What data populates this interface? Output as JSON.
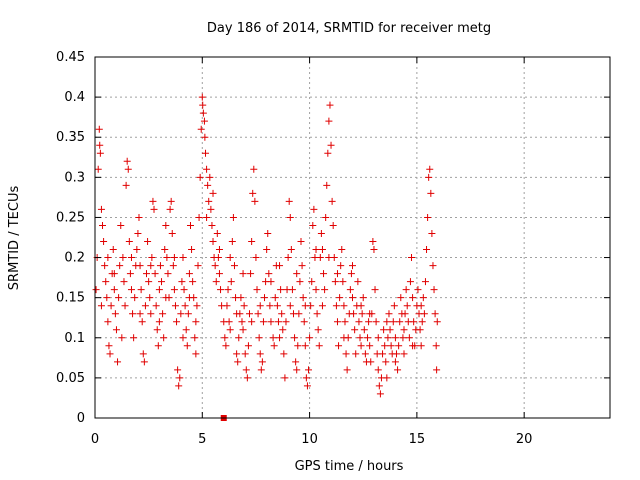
{
  "chart_data": {
    "type": "scatter",
    "title": "Day 186 of 2014, SRMTID for receiver metg",
    "xlabel": "GPS time / hours",
    "ylabel": "SRMTID / TECUs",
    "xlim": [
      0,
      24
    ],
    "ylim": [
      0,
      0.45
    ],
    "xticks": [
      0,
      5,
      10,
      15,
      20
    ],
    "yticks": [
      0,
      0.05,
      0.1,
      0.15,
      0.2,
      0.25,
      0.3,
      0.35,
      0.4,
      0.45
    ],
    "grid": true,
    "legend": "none",
    "series_color": "#e00000",
    "marker": "plus",
    "points": [
      [
        0.05,
        0.16
      ],
      [
        0.1,
        0.2
      ],
      [
        0.15,
        0.31
      ],
      [
        0.2,
        0.36
      ],
      [
        0.22,
        0.34
      ],
      [
        0.25,
        0.33
      ],
      [
        0.3,
        0.26
      ],
      [
        0.35,
        0.24
      ],
      [
        0.4,
        0.22
      ],
      [
        0.45,
        0.19
      ],
      [
        0.5,
        0.17
      ],
      [
        0.55,
        0.15
      ],
      [
        0.6,
        0.12
      ],
      [
        0.65,
        0.09
      ],
      [
        0.7,
        0.08
      ],
      [
        0.75,
        0.14
      ],
      [
        0.8,
        0.18
      ],
      [
        0.85,
        0.21
      ],
      [
        0.9,
        0.16
      ],
      [
        0.95,
        0.13
      ],
      [
        1.0,
        0.11
      ],
      [
        1.05,
        0.07
      ],
      [
        1.1,
        0.15
      ],
      [
        1.15,
        0.19
      ],
      [
        1.2,
        0.24
      ],
      [
        1.3,
        0.2
      ],
      [
        1.35,
        0.17
      ],
      [
        1.4,
        0.14
      ],
      [
        1.45,
        0.29
      ],
      [
        1.5,
        0.32
      ],
      [
        1.55,
        0.31
      ],
      [
        1.6,
        0.22
      ],
      [
        1.65,
        0.18
      ],
      [
        1.7,
        0.16
      ],
      [
        1.75,
        0.13
      ],
      [
        1.8,
        0.1
      ],
      [
        1.85,
        0.15
      ],
      [
        1.9,
        0.19
      ],
      [
        1.95,
        0.21
      ],
      [
        2.0,
        0.23
      ],
      [
        2.05,
        0.25
      ],
      [
        2.1,
        0.19
      ],
      [
        2.15,
        0.16
      ],
      [
        2.2,
        0.12
      ],
      [
        2.25,
        0.08
      ],
      [
        2.3,
        0.07
      ],
      [
        2.35,
        0.14
      ],
      [
        2.4,
        0.18
      ],
      [
        2.45,
        0.22
      ],
      [
        2.5,
        0.17
      ],
      [
        2.55,
        0.15
      ],
      [
        2.6,
        0.13
      ],
      [
        2.65,
        0.2
      ],
      [
        2.7,
        0.27
      ],
      [
        2.75,
        0.26
      ],
      [
        2.8,
        0.18
      ],
      [
        2.85,
        0.14
      ],
      [
        2.9,
        0.11
      ],
      [
        2.95,
        0.09
      ],
      [
        3.0,
        0.16
      ],
      [
        3.05,
        0.19
      ],
      [
        3.1,
        0.17
      ],
      [
        3.15,
        0.13
      ],
      [
        3.2,
        0.1
      ],
      [
        3.25,
        0.21
      ],
      [
        3.3,
        0.24
      ],
      [
        3.35,
        0.2
      ],
      [
        3.4,
        0.18
      ],
      [
        3.45,
        0.15
      ],
      [
        3.5,
        0.26
      ],
      [
        3.55,
        0.27
      ],
      [
        3.6,
        0.23
      ],
      [
        3.65,
        0.19
      ],
      [
        3.7,
        0.16
      ],
      [
        3.75,
        0.14
      ],
      [
        3.8,
        0.12
      ],
      [
        3.85,
        0.06
      ],
      [
        3.9,
        0.04
      ],
      [
        3.95,
        0.05
      ],
      [
        4.0,
        0.13
      ],
      [
        4.05,
        0.17
      ],
      [
        4.1,
        0.2
      ],
      [
        4.15,
        0.16
      ],
      [
        4.2,
        0.14
      ],
      [
        4.25,
        0.11
      ],
      [
        4.3,
        0.09
      ],
      [
        4.35,
        0.13
      ],
      [
        4.4,
        0.18
      ],
      [
        4.45,
        0.24
      ],
      [
        4.5,
        0.21
      ],
      [
        4.55,
        0.17
      ],
      [
        4.6,
        0.15
      ],
      [
        4.65,
        0.1
      ],
      [
        4.7,
        0.08
      ],
      [
        4.75,
        0.14
      ],
      [
        4.8,
        0.19
      ],
      [
        4.85,
        0.25
      ],
      [
        4.9,
        0.3
      ],
      [
        4.95,
        0.36
      ],
      [
        5.0,
        0.4
      ],
      [
        5.02,
        0.39
      ],
      [
        5.05,
        0.38
      ],
      [
        5.1,
        0.37
      ],
      [
        5.12,
        0.35
      ],
      [
        5.15,
        0.33
      ],
      [
        5.2,
        0.31
      ],
      [
        5.25,
        0.29
      ],
      [
        5.3,
        0.27
      ],
      [
        5.35,
        0.3
      ],
      [
        5.4,
        0.26
      ],
      [
        5.45,
        0.24
      ],
      [
        5.5,
        0.22
      ],
      [
        5.55,
        0.2
      ],
      [
        5.6,
        0.19
      ],
      [
        5.65,
        0.17
      ],
      [
        5.7,
        0.23
      ],
      [
        5.75,
        0.2
      ],
      [
        5.8,
        0.18
      ],
      [
        5.85,
        0.16
      ],
      [
        5.9,
        0.14
      ],
      [
        6.0,
        0.12
      ],
      [
        6.05,
        0.1
      ],
      [
        6.1,
        0.09
      ],
      [
        6.15,
        0.14
      ],
      [
        6.2,
        0.16
      ],
      [
        6.25,
        0.12
      ],
      [
        6.3,
        0.11
      ],
      [
        6.35,
        0.17
      ],
      [
        6.4,
        0.22
      ],
      [
        6.45,
        0.25
      ],
      [
        6.5,
        0.19
      ],
      [
        6.55,
        0.15
      ],
      [
        6.6,
        0.08
      ],
      [
        6.65,
        0.07
      ],
      [
        6.7,
        0.1
      ],
      [
        6.75,
        0.13
      ],
      [
        6.8,
        0.15
      ],
      [
        6.85,
        0.12
      ],
      [
        6.9,
        0.11
      ],
      [
        6.95,
        0.14
      ],
      [
        7.0,
        0.08
      ],
      [
        7.05,
        0.06
      ],
      [
        7.1,
        0.05
      ],
      [
        7.15,
        0.09
      ],
      [
        7.2,
        0.13
      ],
      [
        7.25,
        0.18
      ],
      [
        7.3,
        0.22
      ],
      [
        7.35,
        0.28
      ],
      [
        7.4,
        0.31
      ],
      [
        7.45,
        0.27
      ],
      [
        7.5,
        0.2
      ],
      [
        7.55,
        0.16
      ],
      [
        7.6,
        0.13
      ],
      [
        7.65,
        0.1
      ],
      [
        7.7,
        0.08
      ],
      [
        7.75,
        0.06
      ],
      [
        7.8,
        0.07
      ],
      [
        7.85,
        0.12
      ],
      [
        7.9,
        0.15
      ],
      [
        7.95,
        0.17
      ],
      [
        8.0,
        0.21
      ],
      [
        8.05,
        0.23
      ],
      [
        8.1,
        0.18
      ],
      [
        8.15,
        0.14
      ],
      [
        8.2,
        0.12
      ],
      [
        8.3,
        0.1
      ],
      [
        8.35,
        0.09
      ],
      [
        8.4,
        0.15
      ],
      [
        8.45,
        0.19
      ],
      [
        8.5,
        0.14
      ],
      [
        8.55,
        0.12
      ],
      [
        8.6,
        0.1
      ],
      [
        8.65,
        0.16
      ],
      [
        8.7,
        0.13
      ],
      [
        8.75,
        0.11
      ],
      [
        8.8,
        0.08
      ],
      [
        8.85,
        0.05
      ],
      [
        8.9,
        0.12
      ],
      [
        8.95,
        0.16
      ],
      [
        9.0,
        0.2
      ],
      [
        9.05,
        0.27
      ],
      [
        9.1,
        0.25
      ],
      [
        9.15,
        0.21
      ],
      [
        9.2,
        0.16
      ],
      [
        9.25,
        0.13
      ],
      [
        9.3,
        0.1
      ],
      [
        9.35,
        0.07
      ],
      [
        9.4,
        0.06
      ],
      [
        9.45,
        0.09
      ],
      [
        9.5,
        0.13
      ],
      [
        9.55,
        0.17
      ],
      [
        9.6,
        0.22
      ],
      [
        9.65,
        0.19
      ],
      [
        9.7,
        0.15
      ],
      [
        9.75,
        0.12
      ],
      [
        9.8,
        0.09
      ],
      [
        9.85,
        0.05
      ],
      [
        9.9,
        0.04
      ],
      [
        9.95,
        0.06
      ],
      [
        10.0,
        0.1
      ],
      [
        10.05,
        0.14
      ],
      [
        10.1,
        0.17
      ],
      [
        10.15,
        0.24
      ],
      [
        10.2,
        0.26
      ],
      [
        10.25,
        0.2
      ],
      [
        10.3,
        0.16
      ],
      [
        10.35,
        0.13
      ],
      [
        10.4,
        0.11
      ],
      [
        10.45,
        0.09
      ],
      [
        10.5,
        0.2
      ],
      [
        10.55,
        0.23
      ],
      [
        10.6,
        0.21
      ],
      [
        10.65,
        0.18
      ],
      [
        10.7,
        0.16
      ],
      [
        10.75,
        0.25
      ],
      [
        10.8,
        0.29
      ],
      [
        10.85,
        0.33
      ],
      [
        10.9,
        0.37
      ],
      [
        10.95,
        0.39
      ],
      [
        11.0,
        0.34
      ],
      [
        11.05,
        0.27
      ],
      [
        11.1,
        0.24
      ],
      [
        11.15,
        0.2
      ],
      [
        11.2,
        0.17
      ],
      [
        11.25,
        0.14
      ],
      [
        11.3,
        0.12
      ],
      [
        11.35,
        0.09
      ],
      [
        11.4,
        0.15
      ],
      [
        11.45,
        0.19
      ],
      [
        11.5,
        0.21
      ],
      [
        11.55,
        0.17
      ],
      [
        11.6,
        0.14
      ],
      [
        11.65,
        0.12
      ],
      [
        11.7,
        0.08
      ],
      [
        11.75,
        0.06
      ],
      [
        11.8,
        0.1
      ],
      [
        11.85,
        0.13
      ],
      [
        11.9,
        0.16
      ],
      [
        11.95,
        0.18
      ],
      [
        12.0,
        0.15
      ],
      [
        12.05,
        0.13
      ],
      [
        12.1,
        0.11
      ],
      [
        12.15,
        0.08
      ],
      [
        12.2,
        0.14
      ],
      [
        12.25,
        0.17
      ],
      [
        12.3,
        0.12
      ],
      [
        12.35,
        0.1
      ],
      [
        12.4,
        0.09
      ],
      [
        12.45,
        0.13
      ],
      [
        12.5,
        0.15
      ],
      [
        12.55,
        0.11
      ],
      [
        12.6,
        0.08
      ],
      [
        12.65,
        0.07
      ],
      [
        12.7,
        0.1
      ],
      [
        12.75,
        0.12
      ],
      [
        12.8,
        0.09
      ],
      [
        12.85,
        0.07
      ],
      [
        12.9,
        0.13
      ],
      [
        12.95,
        0.22
      ],
      [
        13.0,
        0.21
      ],
      [
        13.05,
        0.16
      ],
      [
        13.1,
        0.12
      ],
      [
        13.15,
        0.08
      ],
      [
        13.2,
        0.06
      ],
      [
        13.25,
        0.04
      ],
      [
        13.3,
        0.03
      ],
      [
        13.35,
        0.05
      ],
      [
        13.4,
        0.08
      ],
      [
        13.45,
        0.11
      ],
      [
        13.5,
        0.09
      ],
      [
        13.55,
        0.07
      ],
      [
        13.6,
        0.05
      ],
      [
        13.65,
        0.1
      ],
      [
        13.7,
        0.13
      ],
      [
        13.75,
        0.11
      ],
      [
        13.8,
        0.09
      ],
      [
        13.85,
        0.08
      ],
      [
        13.9,
        0.12
      ],
      [
        13.95,
        0.14
      ],
      [
        14.0,
        0.1
      ],
      [
        14.05,
        0.08
      ],
      [
        14.1,
        0.06
      ],
      [
        14.15,
        0.09
      ],
      [
        14.2,
        0.12
      ],
      [
        14.25,
        0.15
      ],
      [
        14.3,
        0.13
      ],
      [
        14.35,
        0.1
      ],
      [
        14.4,
        0.08
      ],
      [
        14.45,
        0.13
      ],
      [
        14.5,
        0.16
      ],
      [
        14.55,
        0.14
      ],
      [
        14.6,
        0.12
      ],
      [
        14.65,
        0.1
      ],
      [
        14.7,
        0.17
      ],
      [
        14.75,
        0.2
      ],
      [
        14.8,
        0.15
      ],
      [
        14.85,
        0.12
      ],
      [
        14.9,
        0.09
      ],
      [
        14.95,
        0.11
      ],
      [
        15.0,
        0.14
      ],
      [
        15.05,
        0.16
      ],
      [
        15.1,
        0.13
      ],
      [
        15.15,
        0.11
      ],
      [
        15.2,
        0.09
      ],
      [
        15.25,
        0.12
      ],
      [
        15.3,
        0.15
      ],
      [
        15.35,
        0.13
      ],
      [
        15.4,
        0.17
      ],
      [
        15.45,
        0.21
      ],
      [
        15.5,
        0.25
      ],
      [
        15.55,
        0.3
      ],
      [
        15.6,
        0.31
      ],
      [
        15.65,
        0.28
      ],
      [
        15.7,
        0.23
      ],
      [
        15.75,
        0.19
      ],
      [
        15.8,
        0.16
      ],
      [
        15.85,
        0.13
      ],
      [
        15.9,
        0.09
      ],
      [
        15.92,
        0.06
      ],
      [
        15.95,
        0.12
      ],
      [
        0.3,
        0.14
      ],
      [
        0.6,
        0.2
      ],
      [
        0.9,
        0.18
      ],
      [
        1.25,
        0.1
      ],
      [
        1.7,
        0.2
      ],
      [
        2.1,
        0.13
      ],
      [
        2.6,
        0.19
      ],
      [
        3.0,
        0.12
      ],
      [
        3.3,
        0.15
      ],
      [
        3.7,
        0.2
      ],
      [
        4.1,
        0.1
      ],
      [
        4.4,
        0.15
      ],
      [
        4.7,
        0.12
      ],
      [
        5.2,
        0.25
      ],
      [
        5.5,
        0.28
      ],
      [
        5.8,
        0.21
      ],
      [
        6.3,
        0.2
      ],
      [
        6.6,
        0.13
      ],
      [
        6.9,
        0.18
      ],
      [
        7.3,
        0.12
      ],
      [
        7.7,
        0.14
      ],
      [
        8.2,
        0.17
      ],
      [
        8.6,
        0.19
      ],
      [
        9.1,
        0.14
      ],
      [
        9.4,
        0.18
      ],
      [
        9.8,
        0.14
      ],
      [
        10.3,
        0.21
      ],
      [
        10.6,
        0.14
      ],
      [
        10.9,
        0.2
      ],
      [
        11.3,
        0.18
      ],
      [
        11.6,
        0.1
      ],
      [
        12.0,
        0.19
      ],
      [
        12.4,
        0.14
      ],
      [
        12.8,
        0.13
      ],
      [
        13.2,
        0.1
      ],
      [
        13.6,
        0.12
      ],
      [
        14.0,
        0.07
      ],
      [
        14.4,
        0.11
      ],
      [
        14.8,
        0.09
      ],
      [
        15.2,
        0.14
      ]
    ],
    "extra_marker": {
      "x": 6.0,
      "y": 0.0,
      "shape": "square"
    }
  }
}
